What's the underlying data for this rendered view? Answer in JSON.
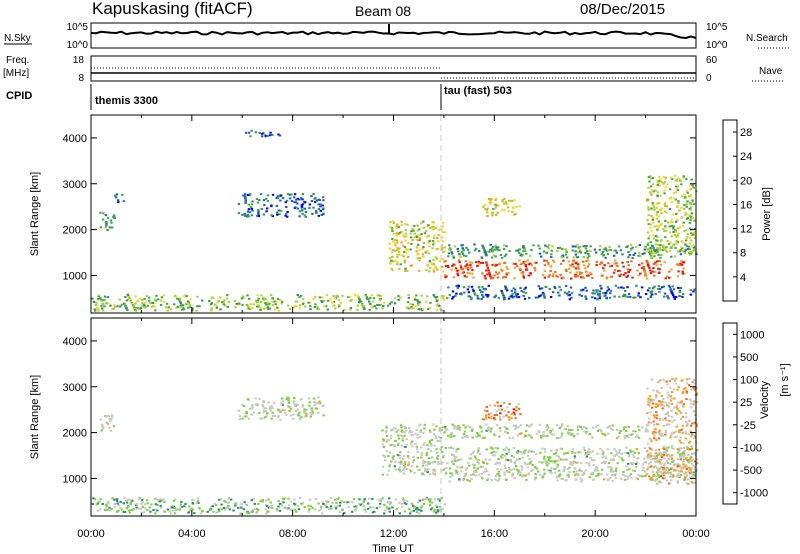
{
  "header": {
    "station": "Kapuskasing (fitACF)",
    "beam": "Beam 08",
    "date": "08/Dec/2015"
  },
  "top_panels": {
    "nsky_label": "N.Sky",
    "nsky_ticks": [
      "10^5",
      "10^0"
    ],
    "nsearch_label": "N.Search",
    "nsearch_ticks": [
      "10^5",
      "10^0"
    ],
    "freq_label": "Freq.",
    "freq_unit": "[MHz]",
    "freq_ticks": [
      "18",
      "8"
    ],
    "nave_label": "Nave",
    "nave_ticks": [
      "60",
      "0"
    ],
    "cpid_label": "CPID",
    "cpid_segments": [
      {
        "label": "themis 3300",
        "start_hour": 0,
        "end_hour": 14
      },
      {
        "label": "tau (fast) 503",
        "start_hour": 14,
        "end_hour": 24
      }
    ]
  },
  "chart_data": [
    {
      "type": "heatmap",
      "quantity": "power",
      "ylabel": "Slant Range [km]",
      "xlim": [
        0,
        24
      ],
      "ylim": [
        180,
        4500
      ],
      "yticks": [
        "1000",
        "2000",
        "3000",
        "4000"
      ],
      "colorbar_label": "Power [dB]",
      "colorbar_ticks": [
        "4",
        "8",
        "12",
        "16",
        "20",
        "24",
        "28"
      ],
      "colorbar_range": [
        0,
        30
      ],
      "colors": [
        "#0000ff",
        "#1e5cc8",
        "#2f8a6e",
        "#3faa3f",
        "#a8d232",
        "#f5d22d",
        "#f5a023",
        "#f06a1e",
        "#e81414"
      ],
      "echo_regions": [
        {
          "t0": 0.3,
          "t1": 0.9,
          "r0": 2000,
          "r1": 2400,
          "level": 0.3
        },
        {
          "t0": 0.9,
          "t1": 1.3,
          "r0": 2600,
          "r1": 2800,
          "level": 0.25
        },
        {
          "t0": 5.8,
          "t1": 9.2,
          "r0": 2300,
          "r1": 2800,
          "level": 0.2
        },
        {
          "t0": 6.1,
          "t1": 7.5,
          "r0": 4050,
          "r1": 4200,
          "level": 0.2
        },
        {
          "t0": 0.0,
          "t1": 14.0,
          "r0": 250,
          "r1": 600,
          "level": 0.45
        },
        {
          "t0": 11.8,
          "t1": 14.0,
          "r0": 1100,
          "r1": 2200,
          "level": 0.55
        },
        {
          "t0": 14.0,
          "t1": 24.0,
          "r0": 1400,
          "r1": 1700,
          "level": 0.35
        },
        {
          "t0": 14.0,
          "t1": 23.5,
          "r0": 950,
          "r1": 1350,
          "level": 0.85
        },
        {
          "t0": 15.5,
          "t1": 17.0,
          "r0": 2300,
          "r1": 2700,
          "level": 0.6
        },
        {
          "t0": 22.0,
          "t1": 24.0,
          "r0": 1500,
          "r1": 3200,
          "level": 0.5
        },
        {
          "t0": 14.0,
          "t1": 24.0,
          "r0": 500,
          "r1": 800,
          "level": 0.2
        }
      ]
    },
    {
      "type": "heatmap",
      "quantity": "velocity",
      "ylabel": "Slant Range [km]",
      "xlabel": "Time UT",
      "xlim": [
        0,
        24
      ],
      "ylim": [
        180,
        4500
      ],
      "xticks": [
        "00:00",
        "04:00",
        "08:00",
        "12:00",
        "16:00",
        "20:00",
        "00:00"
      ],
      "yticks": [
        "1000",
        "2000",
        "3000",
        "4000"
      ],
      "colorbar_label": "Velocity",
      "colorbar_unit": "[m s⁻¹]",
      "colorbar_ticks": [
        "1000",
        "500",
        "100",
        "25",
        "-25",
        "-100",
        "-500",
        "-1000"
      ],
      "colors": [
        "#e81414",
        "#f06a1e",
        "#f5a023",
        "#c8c8c3",
        "#c8c8c3",
        "#7ad23c",
        "#2f8a6e",
        "#1e5cc8",
        "#0000ff"
      ],
      "echo_regions": [
        {
          "t0": 0.3,
          "t1": 0.9,
          "r0": 2000,
          "r1": 2400,
          "level": 0.5
        },
        {
          "t0": 5.8,
          "t1": 9.2,
          "r0": 2300,
          "r1": 2800,
          "level": 0.5
        },
        {
          "t0": 0.0,
          "t1": 14.0,
          "r0": 250,
          "r1": 600,
          "level": 0.6
        },
        {
          "t0": 11.5,
          "t1": 14.0,
          "r0": 1100,
          "r1": 2200,
          "level": 0.5
        },
        {
          "t0": 14.0,
          "t1": 24.0,
          "r0": 950,
          "r1": 1700,
          "level": 0.5
        },
        {
          "t0": 14.0,
          "t1": 22.0,
          "r0": 1900,
          "r1": 2200,
          "level": 0.5
        },
        {
          "t0": 15.5,
          "t1": 17.0,
          "r0": 2300,
          "r1": 2700,
          "level": 0.25
        },
        {
          "t0": 22.0,
          "t1": 24.0,
          "r0": 900,
          "r1": 3200,
          "level": 0.35
        }
      ]
    }
  ]
}
